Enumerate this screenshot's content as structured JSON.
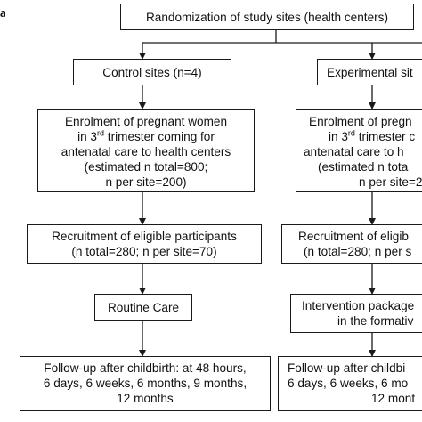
{
  "panel_letter": "a",
  "top": {
    "label": "Randomization of study sites (health centers)"
  },
  "left_column": {
    "sites": "Control sites (n=4)",
    "enrolment": {
      "line1": "Enrolment of pregnant women",
      "line2_pre": "in 3",
      "line2_sup": "rd",
      "line2_post": " trimester coming for",
      "line3": "antenatal care to health centers",
      "line4": "(estimated n total=800;",
      "line5": "n per site=200)"
    },
    "recruitment": {
      "line1": "Recruitment of eligible participants",
      "line2": "(n total=280; n per site=70)"
    },
    "care": "Routine Care",
    "followup": {
      "line1": "Follow-up after childbirth: at 48 hours,",
      "line2": "6 days, 6 weeks, 6 months, 9 months,",
      "line3": "12 months"
    }
  },
  "right_column": {
    "sites": "Experimental sit",
    "enrolment": {
      "line1": "Enrolment of pregn",
      "line2_pre": "in 3",
      "line2_sup": "rd",
      "line2_post": " trimester c",
      "line3": "antenatal care to h",
      "line4": "(estimated n tota",
      "line5": "n per site=2"
    },
    "recruitment": {
      "line1": "Recruitment of eligib",
      "line2": "(n total=280; n per s"
    },
    "care": {
      "line1": "Intervention package",
      "line2": "in the formativ"
    },
    "followup": {
      "line1": "Follow-up after childbi",
      "line2": "6 days, 6 weeks, 6 mo",
      "line3": "12 mont"
    }
  },
  "colors": {
    "stroke": "#1a1a1a",
    "text": "#111111",
    "background": "#ffffff"
  }
}
